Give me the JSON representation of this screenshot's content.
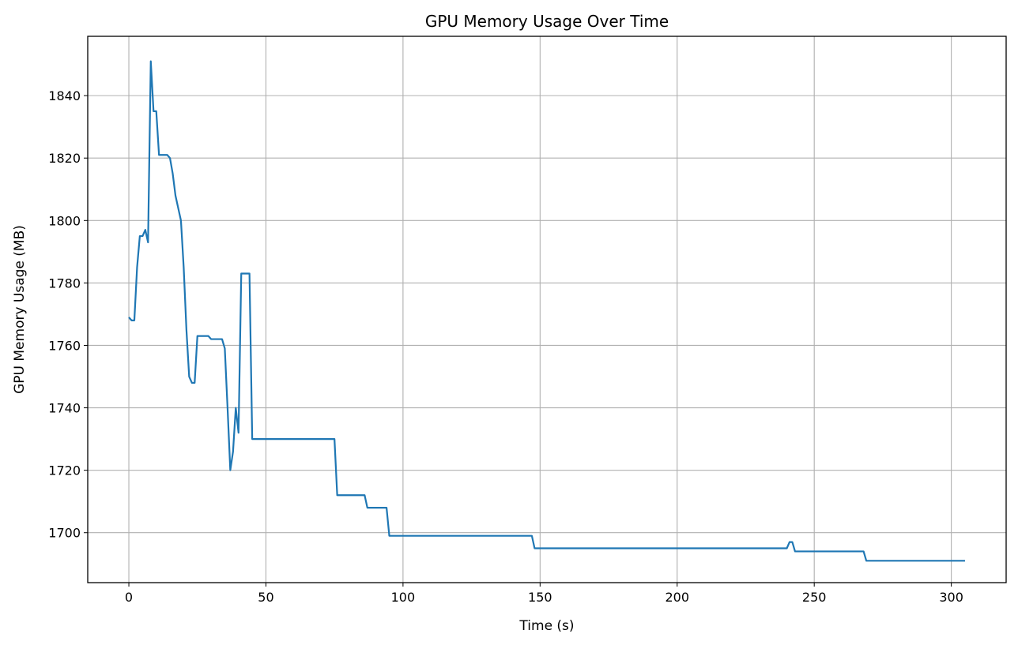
{
  "chart_data": {
    "type": "line",
    "title": "GPU Memory Usage Over Time",
    "xlabel": "Time (s)",
    "ylabel": "GPU Memory Usage (MB)",
    "xlim": [
      -15,
      320
    ],
    "ylim": [
      1684,
      1859
    ],
    "xticks": [
      0,
      50,
      100,
      150,
      200,
      250,
      300
    ],
    "yticks": [
      1700,
      1720,
      1740,
      1760,
      1780,
      1800,
      1820,
      1840
    ],
    "grid": true,
    "series": [
      {
        "color": "#1f77b4",
        "points": [
          [
            0,
            1769
          ],
          [
            1,
            1768
          ],
          [
            2,
            1768
          ],
          [
            3,
            1785
          ],
          [
            4,
            1795
          ],
          [
            5,
            1795
          ],
          [
            6,
            1797
          ],
          [
            7,
            1793
          ],
          [
            8,
            1851
          ],
          [
            9,
            1835
          ],
          [
            10,
            1835
          ],
          [
            11,
            1821
          ],
          [
            12,
            1821
          ],
          [
            14,
            1821
          ],
          [
            15,
            1820
          ],
          [
            16,
            1815
          ],
          [
            17,
            1808
          ],
          [
            19,
            1800
          ],
          [
            20,
            1785
          ],
          [
            21,
            1765
          ],
          [
            22,
            1750
          ],
          [
            23,
            1748
          ],
          [
            24,
            1748
          ],
          [
            25,
            1763
          ],
          [
            27,
            1763
          ],
          [
            29,
            1763
          ],
          [
            30,
            1762
          ],
          [
            34,
            1762
          ],
          [
            35,
            1759
          ],
          [
            36,
            1740
          ],
          [
            37,
            1720
          ],
          [
            38,
            1726
          ],
          [
            39,
            1740
          ],
          [
            40,
            1732
          ],
          [
            41,
            1783
          ],
          [
            44,
            1783
          ],
          [
            45,
            1730
          ],
          [
            75,
            1730
          ],
          [
            76,
            1712
          ],
          [
            86,
            1712
          ],
          [
            87,
            1708
          ],
          [
            94,
            1708
          ],
          [
            95,
            1699
          ],
          [
            147,
            1699
          ],
          [
            148,
            1695
          ],
          [
            240,
            1695
          ],
          [
            241,
            1697
          ],
          [
            242,
            1697
          ],
          [
            243,
            1694
          ],
          [
            268,
            1694
          ],
          [
            269,
            1691
          ],
          [
            305,
            1691
          ]
        ]
      }
    ]
  }
}
